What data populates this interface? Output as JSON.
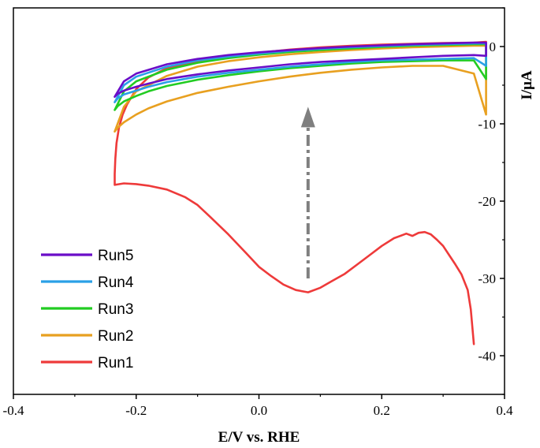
{
  "chart_data": {
    "type": "line",
    "xlabel": "E/V vs. RHE",
    "ylabel": "I/μA",
    "xlim": [
      -0.4,
      0.4
    ],
    "ylim": [
      -45,
      5
    ],
    "xticks": [
      -0.4,
      -0.2,
      0.0,
      0.2,
      0.4
    ],
    "xtick_labels": [
      "-0.4",
      "-0.2",
      "0.0",
      "0.2",
      "0.4"
    ],
    "yticks": [
      0,
      -10,
      -20,
      -30,
      -40
    ],
    "ytick_labels": [
      "0",
      "-10",
      "-20",
      "-30",
      "-40"
    ],
    "y_axis_side": "right",
    "grid": false,
    "legend_position": "bottom-left",
    "annotations": [
      {
        "type": "arrow",
        "style": "dash-dot",
        "color": "#7f7f7f",
        "from": [
          0.08,
          -30
        ],
        "to": [
          0.08,
          -8
        ]
      }
    ],
    "series": [
      {
        "name": "Run5",
        "color": "#6a0dc8",
        "x": [
          -0.235,
          -0.23,
          -0.22,
          -0.2,
          -0.18,
          -0.15,
          -0.1,
          -0.05,
          0.0,
          0.05,
          0.1,
          0.15,
          0.2,
          0.25,
          0.3,
          0.35,
          0.37,
          0.37,
          0.35,
          0.3,
          0.25,
          0.2,
          0.15,
          0.1,
          0.05,
          0.0,
          -0.05,
          -0.1,
          -0.15,
          -0.2,
          -0.22,
          -0.235
        ],
        "y": [
          -6.5,
          -6.1,
          -5.7,
          -5.2,
          -4.8,
          -4.2,
          -3.6,
          -3.1,
          -2.7,
          -2.3,
          -2.0,
          -1.8,
          -1.6,
          -1.4,
          -1.2,
          -1.1,
          -1.2,
          0.5,
          0.5,
          0.4,
          0.3,
          0.15,
          0.0,
          -0.2,
          -0.45,
          -0.75,
          -1.1,
          -1.6,
          -2.3,
          -3.5,
          -4.5,
          -6.5
        ]
      },
      {
        "name": "Run4",
        "color": "#2aa0e6",
        "x": [
          -0.235,
          -0.23,
          -0.22,
          -0.2,
          -0.18,
          -0.15,
          -0.1,
          -0.05,
          0.0,
          0.05,
          0.1,
          0.15,
          0.2,
          0.25,
          0.3,
          0.35,
          0.37,
          0.37,
          0.35,
          0.3,
          0.25,
          0.2,
          0.15,
          0.1,
          0.05,
          0.0,
          -0.05,
          -0.1,
          -0.15,
          -0.2,
          -0.22,
          -0.235
        ],
        "y": [
          -7.2,
          -6.7,
          -6.2,
          -5.7,
          -5.2,
          -4.6,
          -3.9,
          -3.4,
          -3.0,
          -2.6,
          -2.3,
          -2.0,
          -1.8,
          -1.7,
          -1.6,
          -1.5,
          -2.5,
          0.4,
          0.4,
          0.3,
          0.2,
          0.05,
          -0.1,
          -0.3,
          -0.55,
          -0.9,
          -1.3,
          -1.8,
          -2.6,
          -3.9,
          -5.0,
          -7.2
        ]
      },
      {
        "name": "Run3",
        "color": "#22cc22",
        "x": [
          -0.235,
          -0.23,
          -0.22,
          -0.2,
          -0.18,
          -0.15,
          -0.1,
          -0.05,
          0.0,
          0.05,
          0.1,
          0.15,
          0.2,
          0.25,
          0.3,
          0.35,
          0.37,
          0.37,
          0.35,
          0.3,
          0.25,
          0.2,
          0.15,
          0.1,
          0.05,
          0.0,
          -0.05,
          -0.1,
          -0.15,
          -0.2,
          -0.22,
          -0.235
        ],
        "y": [
          -8.2,
          -7.7,
          -7.1,
          -6.4,
          -5.8,
          -5.1,
          -4.3,
          -3.7,
          -3.2,
          -2.8,
          -2.5,
          -2.2,
          -2.0,
          -1.9,
          -1.8,
          -1.8,
          -4.2,
          0.3,
          0.3,
          0.2,
          0.1,
          -0.05,
          -0.25,
          -0.45,
          -0.7,
          -1.05,
          -1.5,
          -2.1,
          -3.0,
          -4.5,
          -5.8,
          -8.2
        ]
      },
      {
        "name": "Run2",
        "color": "#e8a020",
        "x": [
          -0.235,
          -0.23,
          -0.22,
          -0.2,
          -0.18,
          -0.15,
          -0.1,
          -0.05,
          0.0,
          0.05,
          0.1,
          0.15,
          0.2,
          0.25,
          0.3,
          0.35,
          0.37,
          0.37,
          0.35,
          0.3,
          0.25,
          0.2,
          0.15,
          0.1,
          0.05,
          0.0,
          -0.05,
          -0.1,
          -0.15,
          -0.2,
          -0.22,
          -0.235
        ],
        "y": [
          -11.0,
          -10.5,
          -9.8,
          -8.8,
          -8.0,
          -7.1,
          -6.0,
          -5.2,
          -4.5,
          -3.9,
          -3.4,
          -3.0,
          -2.7,
          -2.5,
          -2.5,
          -3.5,
          -8.8,
          0.1,
          0.1,
          0.0,
          -0.1,
          -0.25,
          -0.45,
          -0.7,
          -1.0,
          -1.4,
          -1.9,
          -2.6,
          -3.8,
          -5.8,
          -7.8,
          -11.0
        ]
      },
      {
        "name": "Run1",
        "color": "#ee3a3a",
        "x": [
          0.35,
          0.345,
          0.34,
          0.33,
          0.32,
          0.31,
          0.3,
          0.29,
          0.28,
          0.27,
          0.26,
          0.25,
          0.24,
          0.22,
          0.2,
          0.18,
          0.16,
          0.14,
          0.12,
          0.1,
          0.08,
          0.06,
          0.04,
          0.02,
          0.0,
          -0.02,
          -0.05,
          -0.08,
          -0.1,
          -0.12,
          -0.15,
          -0.18,
          -0.2,
          -0.22,
          -0.235,
          -0.235,
          -0.234,
          -0.232,
          -0.228,
          -0.222,
          -0.215,
          -0.2,
          -0.18,
          -0.15,
          -0.1,
          -0.05,
          0.0,
          0.05,
          0.1,
          0.15,
          0.2,
          0.25,
          0.3,
          0.35,
          0.37
        ],
        "y": [
          -38.5,
          -34.0,
          -31.5,
          -29.5,
          -28.2,
          -27.0,
          -25.8,
          -25.0,
          -24.3,
          -24.0,
          -24.1,
          -24.5,
          -24.2,
          -24.8,
          -25.8,
          -27.0,
          -28.2,
          -29.4,
          -30.3,
          -31.2,
          -31.8,
          -31.5,
          -30.8,
          -29.7,
          -28.5,
          -26.8,
          -24.3,
          -22.0,
          -20.5,
          -19.5,
          -18.5,
          -18.0,
          -17.8,
          -17.7,
          -17.9,
          -16.5,
          -14.5,
          -12.5,
          -10.5,
          -8.8,
          -7.5,
          -5.5,
          -4.0,
          -2.8,
          -1.9,
          -1.3,
          -0.8,
          -0.4,
          -0.1,
          0.1,
          0.25,
          0.35,
          0.45,
          0.5,
          0.6
        ]
      }
    ]
  }
}
